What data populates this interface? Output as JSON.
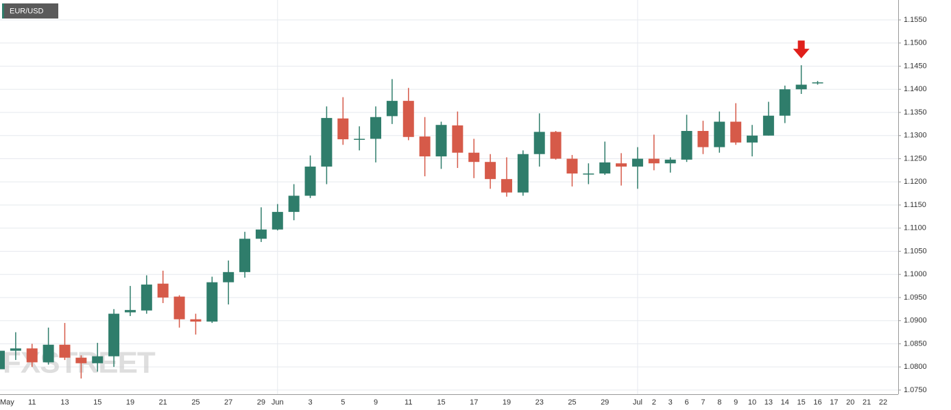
{
  "chart_data": {
    "type": "candlestick",
    "title": "EUR/USD",
    "watermark": "FXSTREET",
    "up_color": "#2f7d6b",
    "down_color": "#d65a49",
    "marker_color": "#e0201b",
    "marker_index": 49,
    "grid": true,
    "categories": [
      "May",
      null,
      "11",
      null,
      "13",
      null,
      "15",
      null,
      "19",
      null,
      "21",
      null,
      "25",
      null,
      "27",
      null,
      "29",
      "Jun",
      null,
      "3",
      null,
      "5",
      null,
      "9",
      null,
      "11",
      null,
      "15",
      null,
      "17",
      null,
      "19",
      null,
      "23",
      null,
      "25",
      null,
      "29",
      null,
      "Jul",
      "2",
      "3",
      "6",
      "7",
      "8",
      "9",
      "10",
      "13",
      "14",
      "15",
      "16",
      "17",
      "20",
      "21",
      "22"
    ],
    "open": [
      1.0795,
      1.0835,
      1.084,
      1.081,
      1.0848,
      1.082,
      1.0808,
      1.0823,
      1.0918,
      1.0922,
      1.098,
      1.0952,
      1.0903,
      1.0898,
      1.0983,
      1.1005,
      1.1077,
      1.1097,
      1.1135,
      1.117,
      1.1233,
      1.1337,
      1.1292,
      1.1293,
      1.1342,
      1.1375,
      1.1298,
      1.1255,
      1.1322,
      1.1263,
      1.1243,
      1.1206,
      1.1177,
      1.126,
      1.1308,
      1.125,
      1.1218,
      1.1218,
      1.124,
      1.1233,
      1.125,
      1.124,
      1.1248,
      1.131,
      1.1275,
      1.133,
      1.1285,
      1.13,
      1.1343,
      1.14,
      1.1413,
      null,
      null,
      null,
      null
    ],
    "high": [
      1.084,
      1.0875,
      1.085,
      1.0885,
      1.0895,
      1.0825,
      1.0852,
      1.0925,
      1.0975,
      1.0998,
      1.1008,
      1.0955,
      1.0915,
      1.0995,
      1.103,
      1.1092,
      1.1145,
      1.1152,
      1.1195,
      1.1257,
      1.1363,
      1.1383,
      1.132,
      1.1363,
      1.1422,
      1.1403,
      1.134,
      1.133,
      1.1352,
      1.1293,
      1.126,
      1.1253,
      1.1268,
      1.1348,
      1.131,
      1.1258,
      1.124,
      1.1287,
      1.1262,
      1.1275,
      1.1302,
      1.1253,
      1.1345,
      1.1332,
      1.1352,
      1.137,
      1.1323,
      1.1373,
      1.1408,
      1.1452,
      1.1418,
      null,
      null,
      null,
      null
    ],
    "low": [
      1.076,
      1.0815,
      1.08,
      1.0805,
      1.0815,
      1.0775,
      1.079,
      1.08,
      1.091,
      1.0915,
      1.0938,
      1.0885,
      1.087,
      1.0895,
      1.0935,
      1.0993,
      1.107,
      1.1095,
      1.1117,
      1.1165,
      1.1195,
      1.128,
      1.1268,
      1.1242,
      1.1325,
      1.129,
      1.1212,
      1.1228,
      1.123,
      1.1208,
      1.1185,
      1.1168,
      1.117,
      1.1233,
      1.1248,
      1.119,
      1.1195,
      1.1215,
      1.1192,
      1.1185,
      1.1225,
      1.122,
      1.1243,
      1.126,
      1.1263,
      1.128,
      1.1255,
      1.13,
      1.1327,
      1.139,
      1.141,
      null,
      null,
      null,
      null
    ],
    "close": [
      1.0835,
      1.084,
      1.081,
      1.0848,
      1.082,
      1.0808,
      1.0823,
      1.0915,
      1.0923,
      1.0978,
      1.095,
      1.0903,
      1.0898,
      1.0983,
      1.1005,
      1.1077,
      1.1097,
      1.1135,
      1.117,
      1.1233,
      1.1338,
      1.1292,
      1.1293,
      1.134,
      1.1375,
      1.1297,
      1.1255,
      1.1323,
      1.1263,
      1.1243,
      1.1206,
      1.1177,
      1.126,
      1.1308,
      1.125,
      1.1218,
      1.1218,
      1.1242,
      1.1233,
      1.125,
      1.124,
      1.1248,
      1.131,
      1.1275,
      1.133,
      1.1285,
      1.13,
      1.1343,
      1.14,
      1.141,
      1.1415,
      null,
      null,
      null,
      null
    ],
    "ylim": [
      1.0741,
      1.1593
    ],
    "yticks": [
      {
        "value": 1.075,
        "label": "1.0750"
      },
      {
        "value": 1.08,
        "label": "1.0800"
      },
      {
        "value": 1.085,
        "label": "1.0850"
      },
      {
        "value": 1.09,
        "label": "1.0900"
      },
      {
        "value": 1.095,
        "label": "1.0950"
      },
      {
        "value": 1.1,
        "label": "1.1000"
      },
      {
        "value": 1.105,
        "label": "1.1050"
      },
      {
        "value": 1.11,
        "label": "1.1100"
      },
      {
        "value": 1.115,
        "label": "1.1150"
      },
      {
        "value": 1.12,
        "label": "1.1200"
      },
      {
        "value": 1.125,
        "label": "1.1250"
      },
      {
        "value": 1.13,
        "label": "1.1300"
      },
      {
        "value": 1.135,
        "label": "1.1350"
      },
      {
        "value": 1.14,
        "label": "1.1400"
      },
      {
        "value": 1.145,
        "label": "1.1450"
      },
      {
        "value": 1.15,
        "label": "1.1500"
      },
      {
        "value": 1.155,
        "label": "1.1550"
      }
    ]
  }
}
